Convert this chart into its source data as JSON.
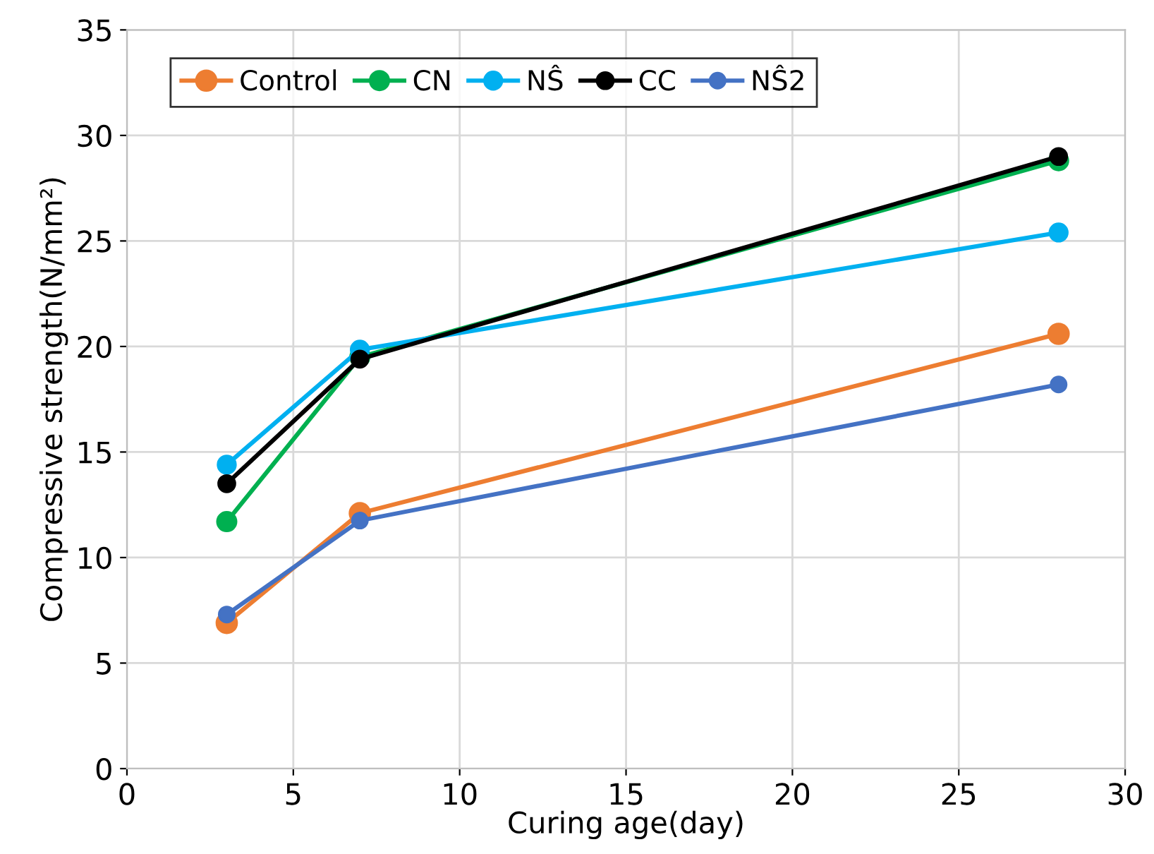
{
  "chart_data": {
    "type": "line",
    "xlabel": "Curing age(day)",
    "ylabel": "Compressive strength(N/mm²)",
    "x": [
      3,
      7,
      28
    ],
    "series": [
      {
        "name": "Control",
        "color": "#ed7d31",
        "values": [
          6.9,
          12.1,
          20.6
        ]
      },
      {
        "name": "CN",
        "color": "#00b050",
        "values": [
          11.7,
          19.5,
          28.8
        ]
      },
      {
        "name": "NŜ",
        "color": "#00b0f0",
        "values": [
          14.4,
          19.85,
          25.4
        ]
      },
      {
        "name": "CC",
        "color": "#000000",
        "values": [
          13.5,
          19.4,
          29.0
        ]
      },
      {
        "name": "NŜ2",
        "color": "#4472c4",
        "values": [
          7.3,
          11.75,
          18.2
        ]
      }
    ],
    "xlim": [
      0,
      30
    ],
    "xticks": [
      0,
      5,
      10,
      15,
      20,
      25,
      30
    ],
    "ylim": [
      0,
      35
    ],
    "yticks": [
      0,
      5,
      10,
      15,
      20,
      25,
      30,
      35
    ],
    "grid": true,
    "legend": "top left",
    "marker": "circle",
    "line_style": "solid"
  }
}
